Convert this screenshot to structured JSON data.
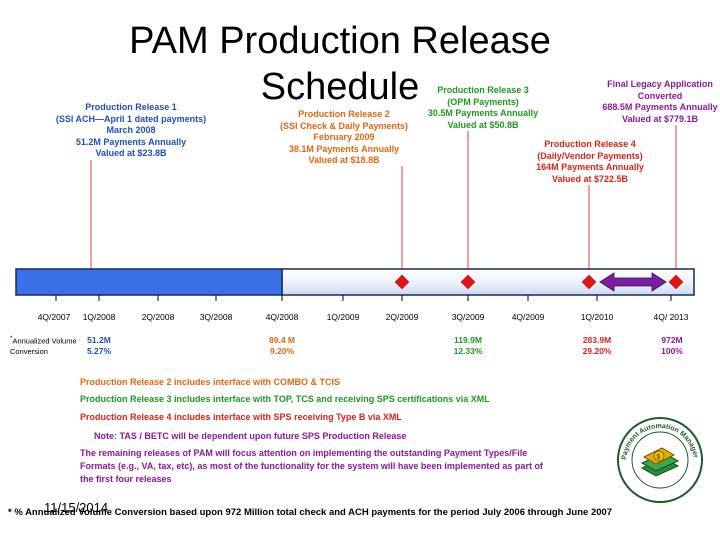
{
  "title": {
    "line1": "PAM Production Release",
    "line2": "Schedule"
  },
  "callouts": {
    "r1": [
      "Production Release 1",
      "(SSI ACH—April 1 dated payments)",
      "March 2008",
      "51.2M Payments Annually",
      "Valued at $23.8B"
    ],
    "r2": [
      "Production Release 2",
      "(SSI Check & Daily Payments)",
      "February 2009",
      "38.1M Payments Annually",
      "Valued at $18.8B"
    ],
    "r3": [
      "Production Release 3",
      "(OPM Payments)",
      "30.5M Payments Annually",
      "Valued at $50.8B"
    ],
    "r4": [
      "Production Release 4",
      "(Daily/Vendor Payments)",
      "164M Payments Annually",
      "Valued at $722.5B"
    ],
    "final": [
      "Final Legacy Application",
      "Converted",
      "688.5M Payments Annually",
      "Valued at $779.1B"
    ]
  },
  "timeline": {
    "quarters": [
      "4Q/2007",
      "1Q/2008",
      "2Q/2008",
      "3Q/2008",
      "4Q/2008",
      "1Q/2009",
      "2Q/2009",
      "3Q/2009",
      "4Q/2009",
      "1Q/2010",
      "4Q/ 2013"
    ],
    "conversion_label": {
      "star": "*",
      "line1": "Annualized Volume",
      "line2": "Conversion"
    },
    "values": [
      {
        "amount": "51.2M",
        "pct": "5.27%"
      },
      {
        "amount": "89.4 M",
        "pct": "9.20%"
      },
      {
        "amount": "119.9M",
        "pct": "12.33%"
      },
      {
        "amount": "283.9M",
        "pct": "29.20%"
      },
      {
        "amount": "972M",
        "pct": "100%"
      }
    ]
  },
  "notes": {
    "n1": "Production Release 2 includes interface with COMBO & TCIS",
    "n2": "Production Release 3 includes interface with TOP, TCS and receiving SPS certifications via XML",
    "n3": "Production Release 4 includes interface with SPS receiving Type B via XML",
    "n4": "Note:  TAS / BETC will be dependent upon future SPS Production Release",
    "n5": [
      "The remaining releases of PAM will focus attention on implementing the outstanding Payment Types/File",
      "Formats (e.g., VA, tax, etc), as most of the functionality for the system will have been implemented as part of",
      "the first four releases"
    ]
  },
  "logo": {
    "ring_text": "Payment Automation Manager"
  },
  "date": "11/15/2014",
  "footnote": "*  % Annualized Volume Conversion based upon 972 Million total check and ACH payments for the period July 2006 through June 2007",
  "colors": {
    "bar_blue": "#3a6fe8",
    "diamond_red": "#e31212",
    "arrow_purple": "#7b1fa2",
    "release1": "#1f4fbf",
    "release2": "#e0680f",
    "release3": "#1e9a1e",
    "release4": "#d8241a",
    "final": "#8a1a9a"
  }
}
